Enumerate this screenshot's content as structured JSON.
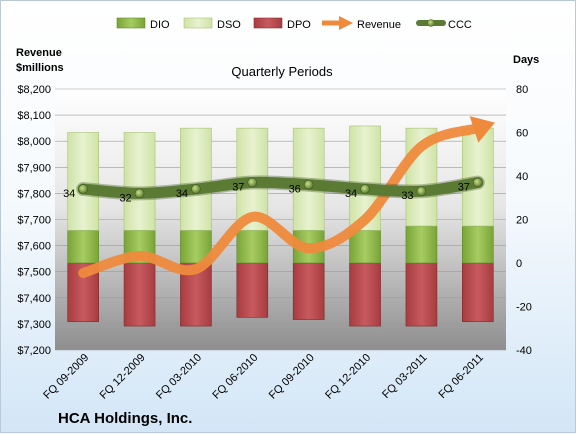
{
  "company": "HCA Holdings, Inc.",
  "colors": {
    "dio": "#8fb84a",
    "dso": "#d8e8b4",
    "dpo": "#b84a4f",
    "revenue": "#ef8a3c",
    "ccc": "#5b7a34"
  },
  "chart_data": {
    "type": "bar",
    "title": "Quarterly Periods",
    "left_axis_title_line1": "Revenue",
    "left_axis_title_line2": "$millions",
    "right_axis_title": "Days",
    "categories": [
      "FQ 09-2009",
      "FQ 12-2009",
      "FQ 03-2010",
      "FQ 06-2010",
      "FQ 09-2010",
      "FQ 12-2010",
      "FQ 03-2011",
      "FQ 06-2011"
    ],
    "left_ylim": [
      7200,
      8200
    ],
    "left_ticks": [
      "$7,200",
      "$7,300",
      "$7,400",
      "$7,500",
      "$7,600",
      "$7,700",
      "$7,800",
      "$7,900",
      "$8,000",
      "$8,100",
      "$8,200"
    ],
    "right_ylim": [
      -40,
      80
    ],
    "right_ticks": [
      "-40",
      "-20",
      "0",
      "20",
      "40",
      "60",
      "80"
    ],
    "legend": [
      "DIO",
      "DSO",
      "DPO",
      "Revenue",
      "CCC"
    ],
    "series": [
      {
        "name": "DPO",
        "axis": "right",
        "values": [
          -27,
          -29,
          -29,
          -25,
          -26,
          -29,
          -29,
          -27
        ]
      },
      {
        "name": "DIO",
        "axis": "right",
        "values": [
          15,
          15,
          15,
          15,
          15,
          15,
          17,
          17
        ]
      },
      {
        "name": "DSO",
        "axis": "right",
        "values": [
          45,
          45,
          47,
          47,
          47,
          48,
          45,
          45
        ]
      },
      {
        "name": "Revenue",
        "axis": "left",
        "values": [
          7495,
          7560,
          7510,
          7710,
          7590,
          7700,
          7980,
          8050
        ]
      },
      {
        "name": "CCC",
        "axis": "right",
        "values": [
          34,
          32,
          34,
          37,
          36,
          34,
          33,
          37
        ],
        "labels": [
          "34",
          "32",
          "34",
          "37",
          "36",
          "34",
          "33",
          "37"
        ]
      }
    ]
  }
}
